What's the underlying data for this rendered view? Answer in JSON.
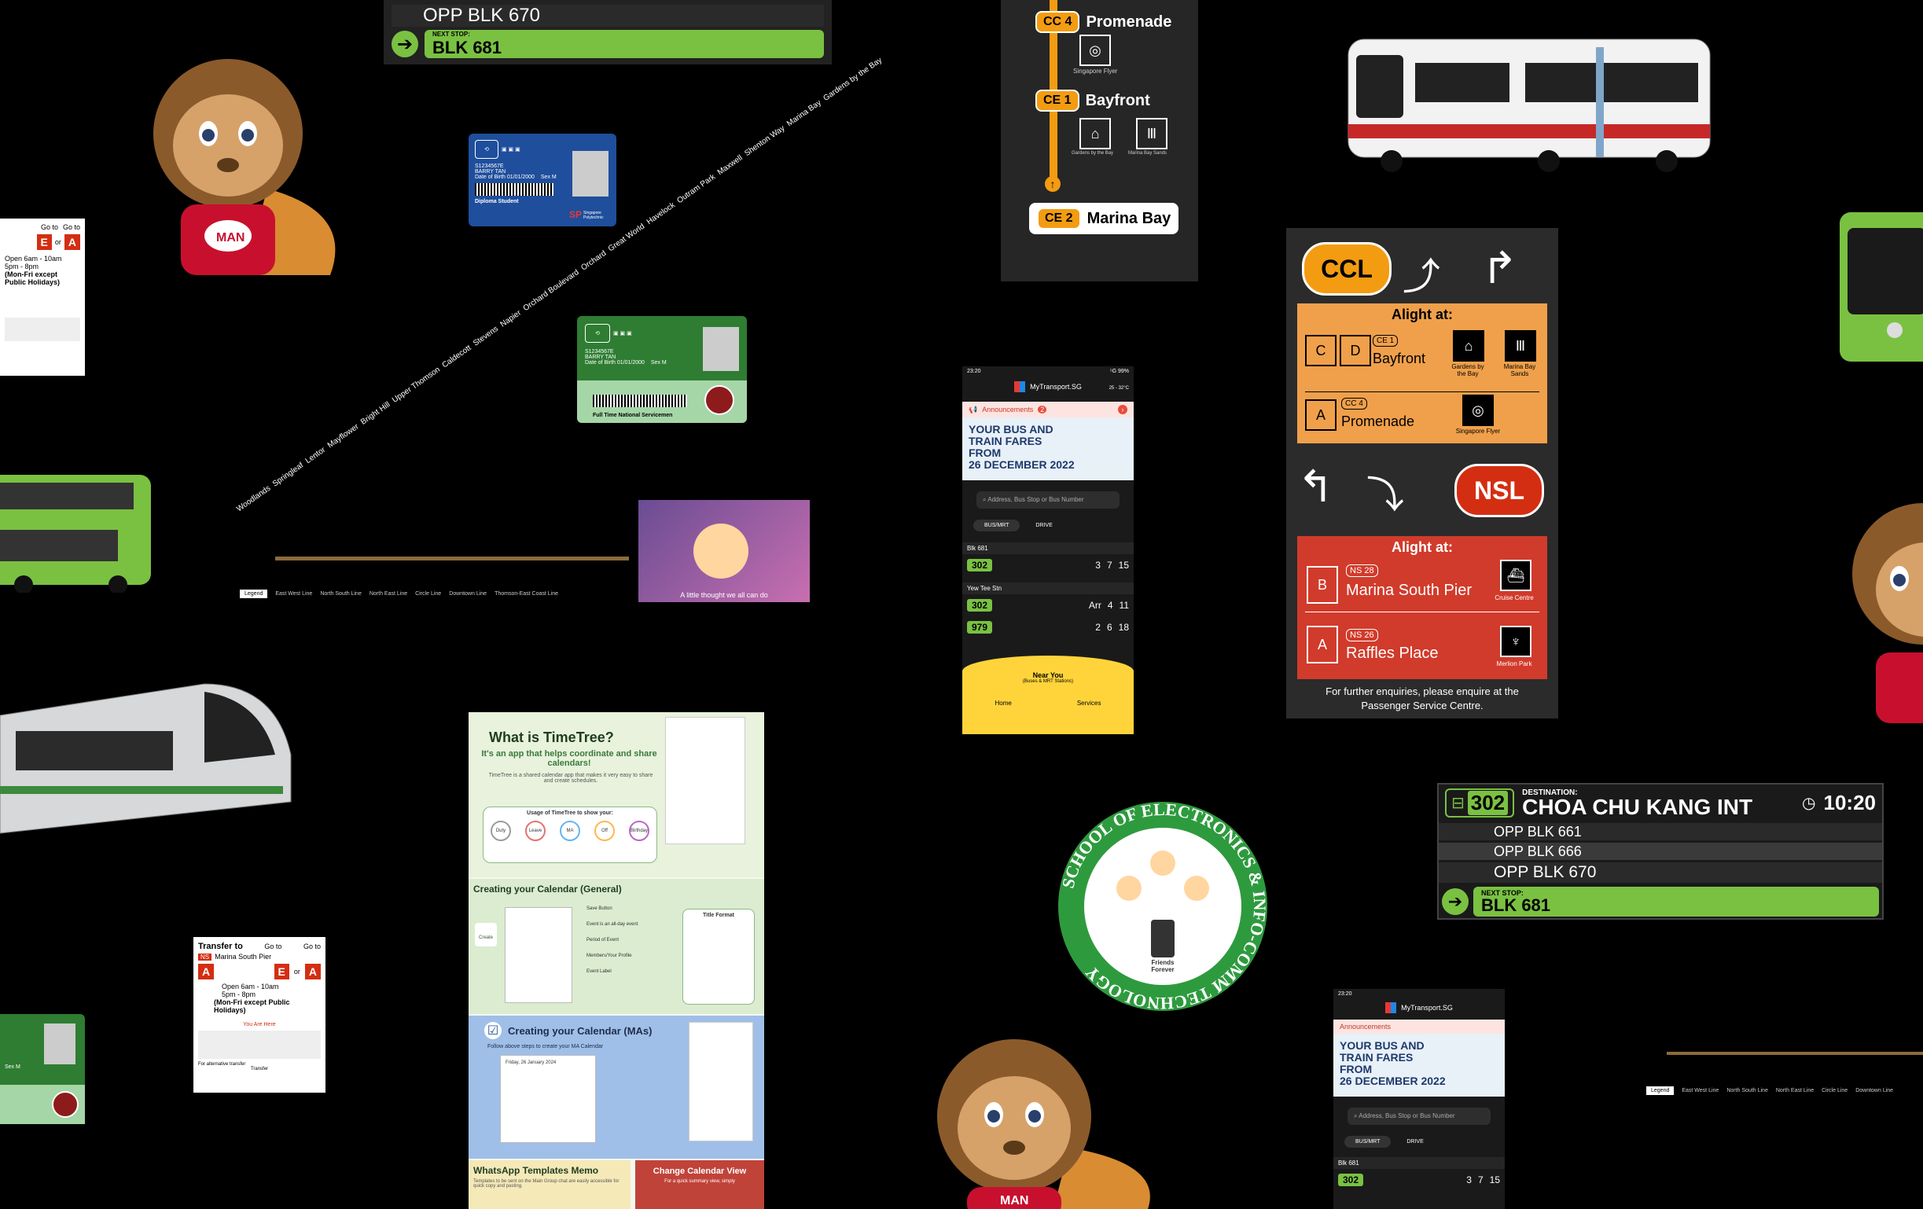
{
  "bus_board_top": {
    "rows": [
      {
        "label": "OPP BLK 670"
      }
    ],
    "next_label": "NEXT STOP:",
    "next_stop": "BLK 681"
  },
  "mrt_map_top": {
    "stations": [
      {
        "code": "CC 4",
        "name": "Promenade",
        "poi": "Singapore Flyer"
      },
      {
        "code": "CE 1",
        "name": "Bayfront",
        "poi": "Gardens by the Bay",
        "poi2": "Marina Bay Sands"
      },
      {
        "code": "CE 2",
        "name": "Marina Bay"
      }
    ]
  },
  "student_card": {
    "id": "S1234567E",
    "name": "BARRY TAN",
    "dob": "Date of Birth 01/01/2000",
    "sex": "Sex M",
    "type": "Diploma Student",
    "school": "Singapore Polytechnic",
    "school_abbr": "SP"
  },
  "ns_card": {
    "id": "S1234567E",
    "name": "BARRY TAN",
    "dob": "Date of Birth 01/01/2000",
    "sex": "Sex M",
    "type": "Full Time National Servicemen"
  },
  "transfer_sign": {
    "title": "Transfer to",
    "goto1": "Go to",
    "goto2": "Go to",
    "line": "Marina South Pier",
    "or": "or",
    "hours1": "Open 6am - 10am",
    "hours2": "5pm - 8pm",
    "hours3": "(Mon-Fri except Public Holidays)",
    "you_are_here": "You Are Here",
    "note": "For alternative transfer",
    "footer": "Transfer"
  },
  "line_map": {
    "stations": [
      "Woodlands",
      "Springleaf",
      "Lentor",
      "Mayflower",
      "Bright Hill",
      "Upper Thomson",
      "Caldecott",
      "Stevens",
      "Napier",
      "Orchard Boulevard",
      "Orchard",
      "Great World",
      "Havelock",
      "Outram Park",
      "Maxwell",
      "Shenton Way",
      "Marina Bay",
      "Gardens by the Bay"
    ],
    "legend": [
      "Legend",
      "East West Line",
      "North South Line",
      "North East Line",
      "Circle Line",
      "Downtown Line",
      "Thomson-East Coast Line"
    ]
  },
  "video_caption": "A little thought we all can do",
  "phone_app": {
    "time": "23:20",
    "status": "⁵G 99%",
    "title": "MyTransport.SG",
    "weather": "25 - 32°C",
    "announcements": "Announcements",
    "announcement_count": "2",
    "fare_line1": "YOUR BUS AND",
    "fare_line2": "TRAIN FARES",
    "fare_line3": "FROM",
    "fare_line4": "26 DECEMBER 2022",
    "search_placeholder": "Address, Bus Stop or Bus Number",
    "tab_bus": "BUS/MRT",
    "tab_drive": "DRIVE",
    "stop1": "Blk 681",
    "stop2": "Yew Tee Stn",
    "bus1": "302",
    "bus2": "302",
    "bus3": "979",
    "arr1": [
      "3",
      "7",
      "15"
    ],
    "arr2": [
      "Arr",
      "4",
      "11"
    ],
    "arr3": [
      "2",
      "6",
      "18"
    ],
    "near_you": "Near You",
    "near_sub": "(Buses & MRT Stations)",
    "nav_home": "Home",
    "nav_services": "Services"
  },
  "alight_sign": {
    "ccl": "CCL",
    "nsl": "NSL",
    "alight_at": "Alight at:",
    "c_codes": [
      "C",
      "D"
    ],
    "bayfront_code": "CE 1",
    "bayfront": "Bayfront",
    "gardens": "Gardens by the Bay",
    "mbs": "Marina Bay Sands",
    "a_code": "A",
    "promenade_code": "CC 4",
    "promenade": "Promenade",
    "flyer": "Singapore Flyer",
    "b_code": "B",
    "msp_code": "NS 28",
    "msp": "Marina South Pier",
    "cruise": "Cruise Centre",
    "a2_code": "A",
    "raffles_code": "NS 26",
    "raffles": "Raffles Place",
    "merlion": "Merlion Park",
    "footer1": "For further enquiries, please enquire at the",
    "footer2": "Passenger Service Centre."
  },
  "bus_display": {
    "route": "302",
    "dest_label": "DESTINATION:",
    "destination": "CHOA CHU KANG INT",
    "time": "10:20",
    "rows": [
      "OPP BLK 661",
      "OPP BLK 666",
      "OPP BLK 670"
    ],
    "next_label": "NEXT STOP:",
    "next_stop": "BLK 681"
  },
  "timetree": {
    "title": "What is TimeTree?",
    "subtitle": "It's an app that helps coordinate and share calendars!",
    "desc": "TimeTree is a shared calendar app that makes it very easy to share and create schedules.",
    "usage": "Usage of TimeTree to show your:",
    "usage_items": [
      "Duty",
      "Leave",
      "MA",
      "Off",
      "Birthday"
    ],
    "section2": "Creating your Calendar (General)",
    "s2_items": [
      "Save Button",
      "Event is an all-day event",
      "Period of Event",
      "Members/Your Profile",
      "Event Label"
    ],
    "create": "Create",
    "title_format": "Title Format",
    "section3": "Creating your Calendar (MAs)",
    "s3_step": "Follow above steps to create your MA Calendar",
    "s3_date": "Friday, 26 January 2024",
    "section4": "WhatsApp Templates Memo",
    "s4_desc": "Templates to be sent on the Main Group chat are easily accessible for quick copy and pasting.",
    "section5": "Change Calendar View",
    "s5_desc": "For a quick summary view, simply"
  },
  "school_logo": {
    "text": "SCHOOL OF ELECTRONICS & INFO-COMM TECHNOLOGY",
    "center": "Friends Forever"
  },
  "phone2": {
    "time": "23:20",
    "title": "MyTransport.SG",
    "announcements": "Announcements",
    "fare_line1": "YOUR BUS AND",
    "fare_line2": "TRAIN FARES",
    "fare_line3": "FROM",
    "fare_line4": "26 DECEMBER 2022",
    "search_placeholder": "Address, Bus Stop or Bus Number",
    "tab_bus": "BUS/MRT",
    "tab_drive": "DRIVE",
    "stop1": "Blk 681",
    "bus1": "302",
    "arr": [
      "3",
      "7",
      "15"
    ]
  },
  "mascot_label": "MAN",
  "colors": {
    "bus_green": "#7ac142",
    "orange": "#f39c12",
    "nsl_red": "#d42e12",
    "sp_blue": "#1f4e9c",
    "ns_green": "#2e7d32"
  }
}
